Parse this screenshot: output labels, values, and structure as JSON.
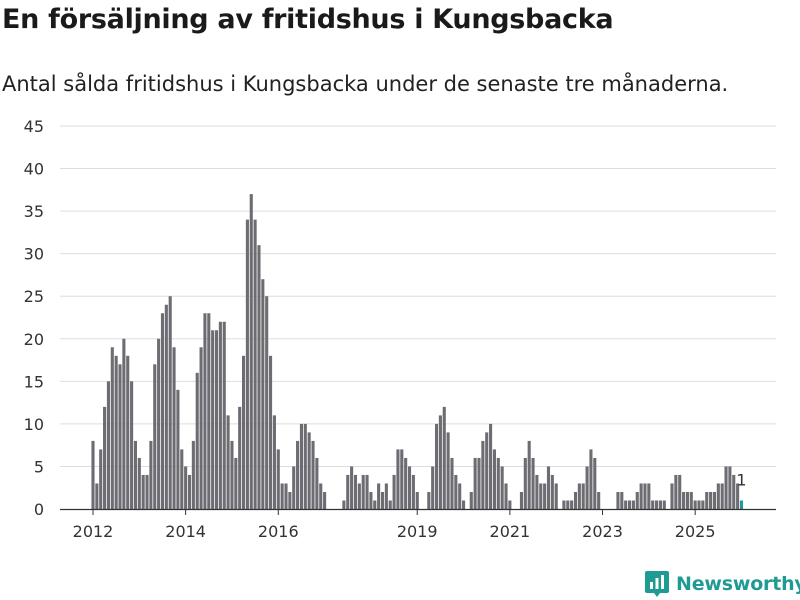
{
  "colors": {
    "bar": "#6d6c72",
    "highlight": "#1f9b93",
    "grid": "#dddddd",
    "axis": "#333333",
    "brand": "#1f9b93"
  },
  "brand": {
    "name": "Newsworthy",
    "icon": "newsworthy-chart-icon"
  },
  "chart_data": {
    "type": "bar",
    "title": "En försäljning av fritidshus i Kungsbacka",
    "subtitle": "Antal sålda fritidshus i Kungsbacka under de senaste tre månaderna.",
    "xlabel": "",
    "ylabel": "",
    "ylim": [
      0,
      45
    ],
    "yticks": [
      0,
      5,
      10,
      15,
      20,
      25,
      30,
      35,
      40,
      45
    ],
    "xticks": [
      {
        "label": "2012",
        "index": 0
      },
      {
        "label": "2014",
        "index": 24
      },
      {
        "label": "2016",
        "index": 48
      },
      {
        "label": "2019",
        "index": 84
      },
      {
        "label": "2021",
        "index": 108
      },
      {
        "label": "2023",
        "index": 132
      },
      {
        "label": "2025",
        "index": 156
      }
    ],
    "grid": true,
    "legend": "none",
    "start": "2012-01",
    "frequency": "monthly",
    "highlight_last": true,
    "last_value_label": "1",
    "values": [
      8,
      3,
      7,
      12,
      15,
      19,
      18,
      17,
      20,
      18,
      15,
      8,
      6,
      4,
      4,
      8,
      17,
      20,
      23,
      24,
      25,
      19,
      14,
      7,
      5,
      4,
      8,
      16,
      19,
      23,
      23,
      21,
      21,
      22,
      22,
      11,
      8,
      6,
      12,
      18,
      34,
      37,
      34,
      31,
      27,
      25,
      18,
      11,
      7,
      3,
      3,
      2,
      5,
      8,
      10,
      10,
      9,
      8,
      6,
      3,
      2,
      0,
      0,
      0,
      0,
      1,
      4,
      5,
      4,
      3,
      4,
      4,
      2,
      1,
      3,
      2,
      3,
      1,
      4,
      7,
      7,
      6,
      5,
      4,
      2,
      0,
      0,
      2,
      5,
      10,
      11,
      12,
      9,
      6,
      4,
      3,
      1,
      0,
      2,
      6,
      6,
      8,
      9,
      10,
      7,
      6,
      5,
      3,
      1,
      0,
      0,
      2,
      6,
      8,
      6,
      4,
      3,
      3,
      5,
      4,
      3,
      0,
      1,
      1,
      1,
      2,
      3,
      3,
      5,
      7,
      6,
      2,
      0,
      0,
      0,
      0,
      2,
      2,
      1,
      1,
      1,
      2,
      3,
      3,
      3,
      1,
      1,
      1,
      1,
      0,
      3,
      4,
      4,
      2,
      2,
      2,
      1,
      1,
      1,
      2,
      2,
      2,
      3,
      3,
      5,
      5,
      4,
      3,
      1
    ]
  }
}
